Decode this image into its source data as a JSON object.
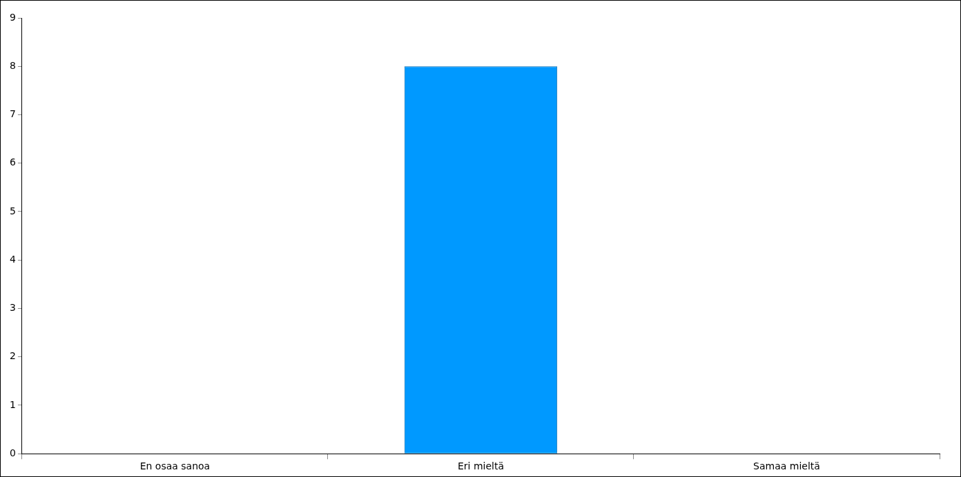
{
  "chart_data": {
    "type": "bar",
    "categories": [
      "En osaa sanoa",
      "Eri mieltä",
      "Samaa mieltä"
    ],
    "values": [
      0,
      8,
      0
    ],
    "color": "#0099ff",
    "ylim": [
      0,
      9
    ],
    "yticks": [
      0,
      1,
      2,
      3,
      4,
      5,
      6,
      7,
      8,
      9
    ],
    "grid": false,
    "legend": false
  }
}
